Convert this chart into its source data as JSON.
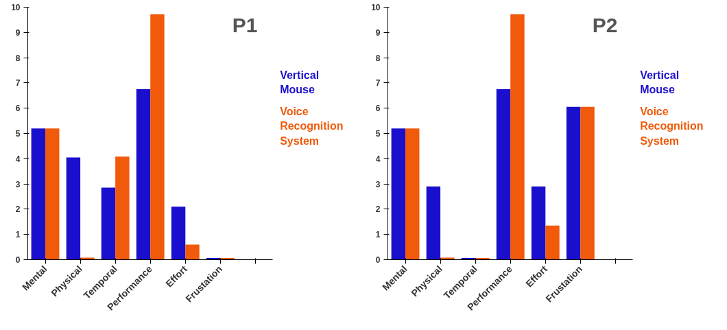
{
  "chart_data": [
    {
      "type": "bar",
      "title": "P1",
      "categories": [
        "Mental",
        "Physical",
        "Temporal",
        "Performance",
        "Effort",
        "Frustation",
        null
      ],
      "ylim": [
        0,
        10
      ],
      "yticks": [
        0,
        1,
        2,
        3,
        4,
        5,
        6,
        7,
        8,
        9,
        10
      ],
      "grid": false,
      "series": [
        {
          "name": "Vertical Mouse",
          "color": "#1a0fcc",
          "values": [
            5.2,
            4.05,
            2.85,
            6.75,
            2.1,
            0.07,
            null
          ]
        },
        {
          "name": "Voice Recognition System",
          "color": "#f05a0a",
          "values": [
            5.2,
            0.08,
            4.08,
            9.72,
            0.6,
            0.07,
            null
          ]
        }
      ]
    },
    {
      "type": "bar",
      "title": "P2",
      "categories": [
        "Mental",
        "Physical",
        "Temporal",
        "Performance",
        "Effort",
        "Frustation",
        null
      ],
      "ylim": [
        0,
        10
      ],
      "yticks": [
        0,
        1,
        2,
        3,
        4,
        5,
        6,
        7,
        8,
        9,
        10
      ],
      "grid": false,
      "series": [
        {
          "name": "Vertical Mouse",
          "color": "#1a0fcc",
          "values": [
            5.2,
            2.9,
            0.07,
            6.75,
            2.9,
            6.05,
            null
          ]
        },
        {
          "name": "Voice Recognition System",
          "color": "#f05a0a",
          "values": [
            5.2,
            0.08,
            0.07,
            9.72,
            1.35,
            6.05,
            null
          ]
        }
      ]
    }
  ]
}
